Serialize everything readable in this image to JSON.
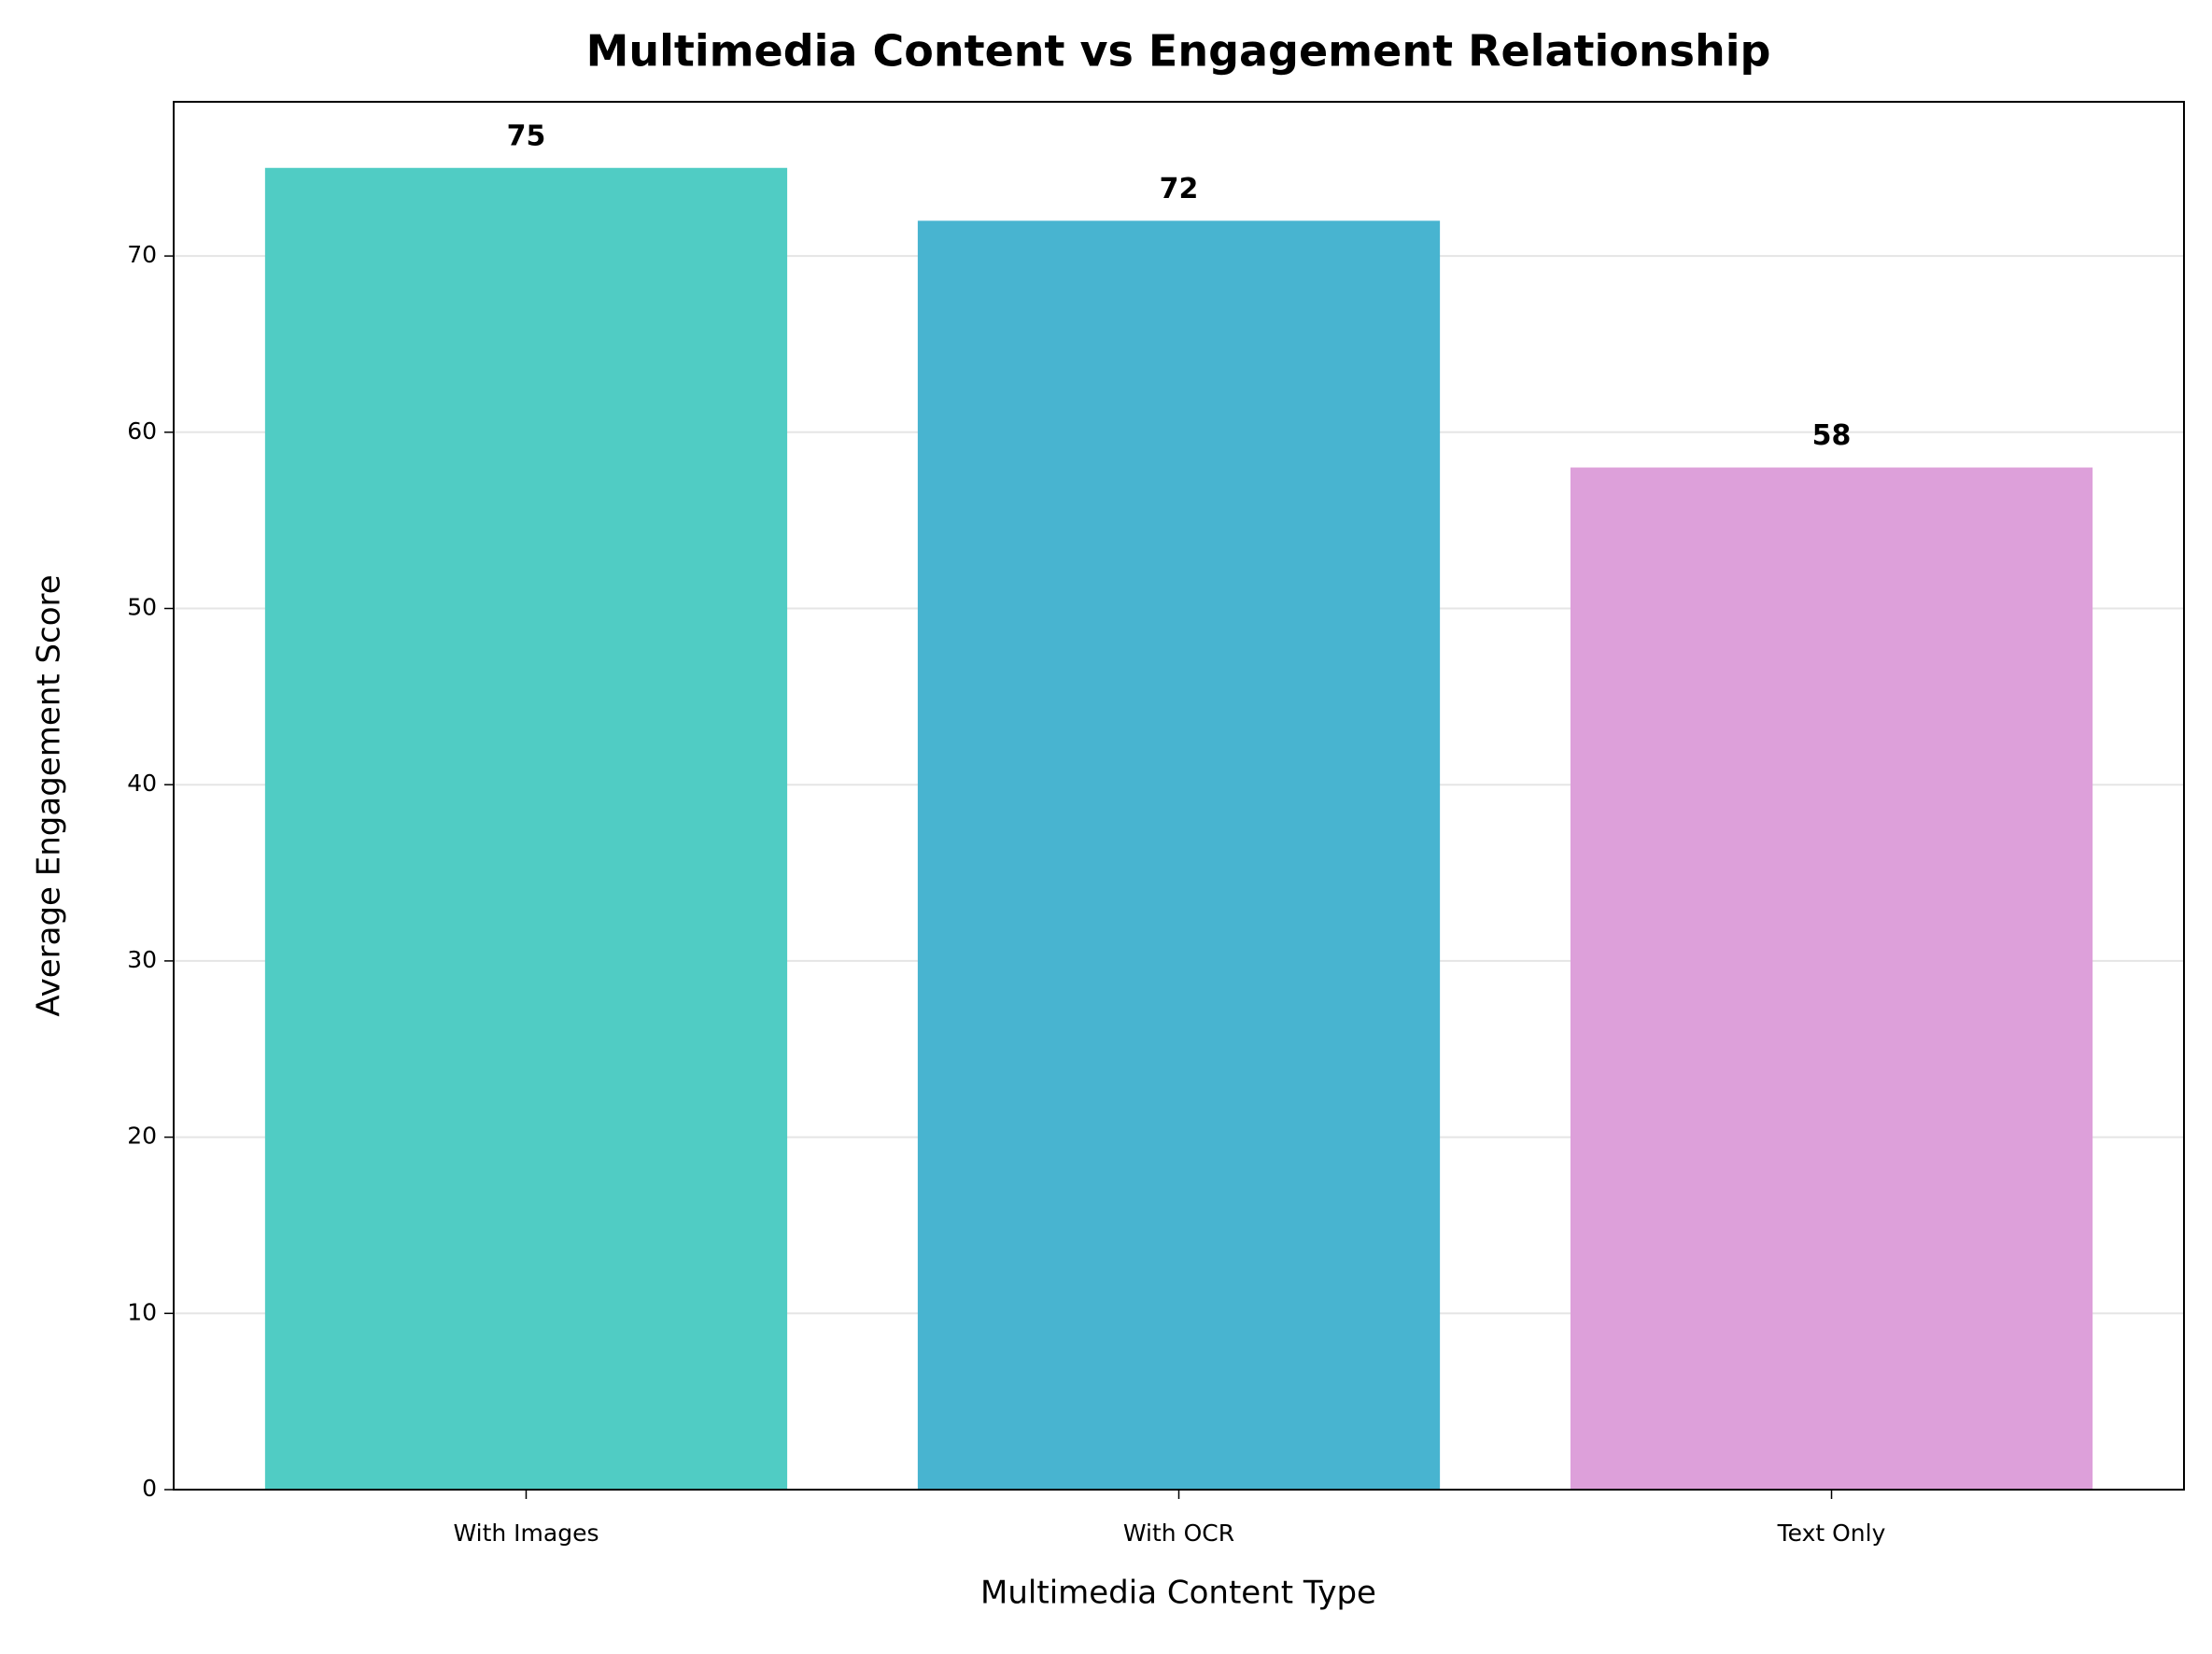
{
  "chart_data": {
    "type": "bar",
    "title": "Multimedia Content vs Engagement Relationship",
    "x_label": "Multimedia Content Type",
    "y_label": "Average Engagement Score",
    "categories": [
      "With Images",
      "With OCR",
      "Text Only"
    ],
    "values": [
      75,
      72,
      58
    ],
    "colors": [
      "#50ccc4",
      "#48b4d0",
      "#dda0da"
    ],
    "ylim": [
      0,
      78.75
    ],
    "yticks": [
      0,
      10,
      20,
      30,
      40,
      50,
      60,
      70
    ],
    "grid": true
  }
}
